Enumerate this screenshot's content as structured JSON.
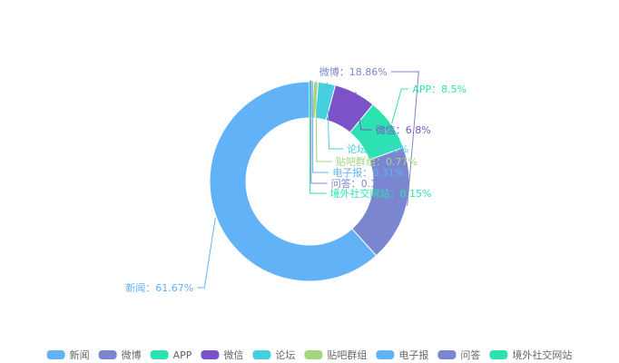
{
  "chart_data": {
    "type": "pie",
    "variant": "donut",
    "legend_position": "bottom",
    "separator": "：",
    "slices": [
      {
        "name": "新闻",
        "value": 61.67,
        "label": "61.67%",
        "color": "#62b2f7"
      },
      {
        "name": "微博",
        "value": 18.86,
        "label": "18.86%",
        "color": "#7a87d0"
      },
      {
        "name": "APP",
        "value": 8.5,
        "label": "8.5%",
        "color": "#2de2b1"
      },
      {
        "name": "微信",
        "value": 6.8,
        "label": "6.8%",
        "color": "#7b52c8"
      },
      {
        "name": "论坛",
        "value": 2.78,
        "label": "2.78%",
        "color": "#45cfe0"
      },
      {
        "name": "贴吧群组",
        "value": 0.77,
        "label": "0.77%",
        "color": "#a5d67f"
      },
      {
        "name": "电子报",
        "value": 0.31,
        "label": "0.31%",
        "color": "#62b2f7"
      },
      {
        "name": "问答",
        "value": 0.16,
        "label": "0.16%",
        "color": "#7a87d0"
      },
      {
        "name": "境外社交网站",
        "value": 0.15,
        "label": "0.15%",
        "color": "#2de2b1"
      }
    ]
  }
}
